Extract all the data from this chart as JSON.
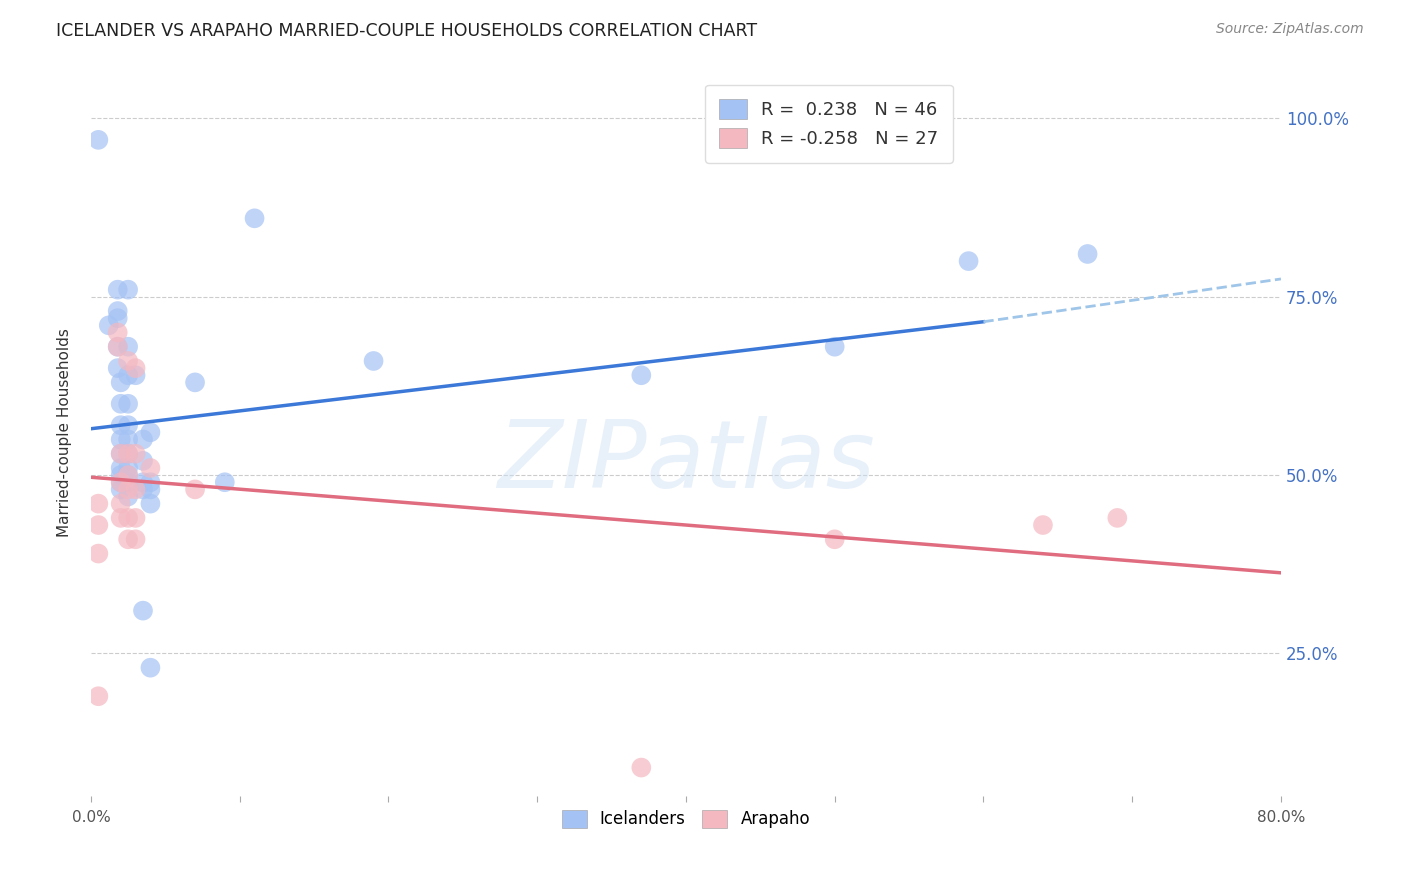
{
  "title": "ICELANDER VS ARAPAHO MARRIED-COUPLE HOUSEHOLDS CORRELATION CHART",
  "source": "Source: ZipAtlas.com",
  "ylabel": "Married-couple Households",
  "ytick_labels": [
    "100.0%",
    "75.0%",
    "50.0%",
    "25.0%"
  ],
  "ytick_values": [
    1.0,
    0.75,
    0.5,
    0.25
  ],
  "xlim": [
    0.0,
    0.8
  ],
  "ylim": [
    0.05,
    1.07
  ],
  "blue_color": "#a4c2f4",
  "pink_color": "#f4b8c1",
  "blue_line_color": "#3c78d8",
  "pink_line_color": "#e06c80",
  "blue_dashed_color": "#9fc5e8",
  "grid_color": "#cccccc",
  "background_color": "#ffffff",
  "watermark": "ZIPatlas",
  "blue_scatter": [
    [
      0.005,
      0.97
    ],
    [
      0.012,
      0.71
    ],
    [
      0.018,
      0.76
    ],
    [
      0.018,
      0.73
    ],
    [
      0.018,
      0.72
    ],
    [
      0.018,
      0.68
    ],
    [
      0.018,
      0.65
    ],
    [
      0.02,
      0.63
    ],
    [
      0.02,
      0.6
    ],
    [
      0.02,
      0.57
    ],
    [
      0.02,
      0.55
    ],
    [
      0.02,
      0.53
    ],
    [
      0.02,
      0.51
    ],
    [
      0.02,
      0.5
    ],
    [
      0.02,
      0.49
    ],
    [
      0.02,
      0.48
    ],
    [
      0.025,
      0.76
    ],
    [
      0.025,
      0.68
    ],
    [
      0.025,
      0.64
    ],
    [
      0.025,
      0.6
    ],
    [
      0.025,
      0.57
    ],
    [
      0.025,
      0.55
    ],
    [
      0.025,
      0.53
    ],
    [
      0.025,
      0.51
    ],
    [
      0.025,
      0.5
    ],
    [
      0.025,
      0.49
    ],
    [
      0.025,
      0.47
    ],
    [
      0.03,
      0.64
    ],
    [
      0.035,
      0.55
    ],
    [
      0.035,
      0.52
    ],
    [
      0.035,
      0.49
    ],
    [
      0.035,
      0.48
    ],
    [
      0.035,
      0.31
    ],
    [
      0.04,
      0.56
    ],
    [
      0.04,
      0.49
    ],
    [
      0.04,
      0.48
    ],
    [
      0.04,
      0.46
    ],
    [
      0.04,
      0.23
    ],
    [
      0.07,
      0.63
    ],
    [
      0.09,
      0.49
    ],
    [
      0.11,
      0.86
    ],
    [
      0.19,
      0.66
    ],
    [
      0.37,
      0.64
    ],
    [
      0.5,
      0.68
    ],
    [
      0.59,
      0.8
    ],
    [
      0.67,
      0.81
    ]
  ],
  "pink_scatter": [
    [
      0.005,
      0.46
    ],
    [
      0.005,
      0.43
    ],
    [
      0.005,
      0.39
    ],
    [
      0.005,
      0.19
    ],
    [
      0.018,
      0.7
    ],
    [
      0.018,
      0.68
    ],
    [
      0.02,
      0.53
    ],
    [
      0.02,
      0.49
    ],
    [
      0.02,
      0.46
    ],
    [
      0.02,
      0.44
    ],
    [
      0.025,
      0.66
    ],
    [
      0.025,
      0.53
    ],
    [
      0.025,
      0.5
    ],
    [
      0.025,
      0.48
    ],
    [
      0.025,
      0.44
    ],
    [
      0.025,
      0.41
    ],
    [
      0.03,
      0.65
    ],
    [
      0.03,
      0.53
    ],
    [
      0.03,
      0.48
    ],
    [
      0.03,
      0.44
    ],
    [
      0.03,
      0.41
    ],
    [
      0.04,
      0.51
    ],
    [
      0.07,
      0.48
    ],
    [
      0.37,
      0.09
    ],
    [
      0.5,
      0.41
    ],
    [
      0.64,
      0.43
    ],
    [
      0.69,
      0.44
    ]
  ],
  "blue_solid_trend": [
    0.0,
    0.6,
    0.565,
    0.715
  ],
  "blue_dashed_trend": [
    0.6,
    0.8,
    0.715,
    0.775
  ],
  "pink_solid_trend": [
    0.0,
    0.8,
    0.497,
    0.363
  ],
  "xtick_positions": [
    0.0,
    0.1,
    0.2,
    0.3,
    0.4,
    0.5,
    0.6,
    0.7,
    0.8
  ]
}
